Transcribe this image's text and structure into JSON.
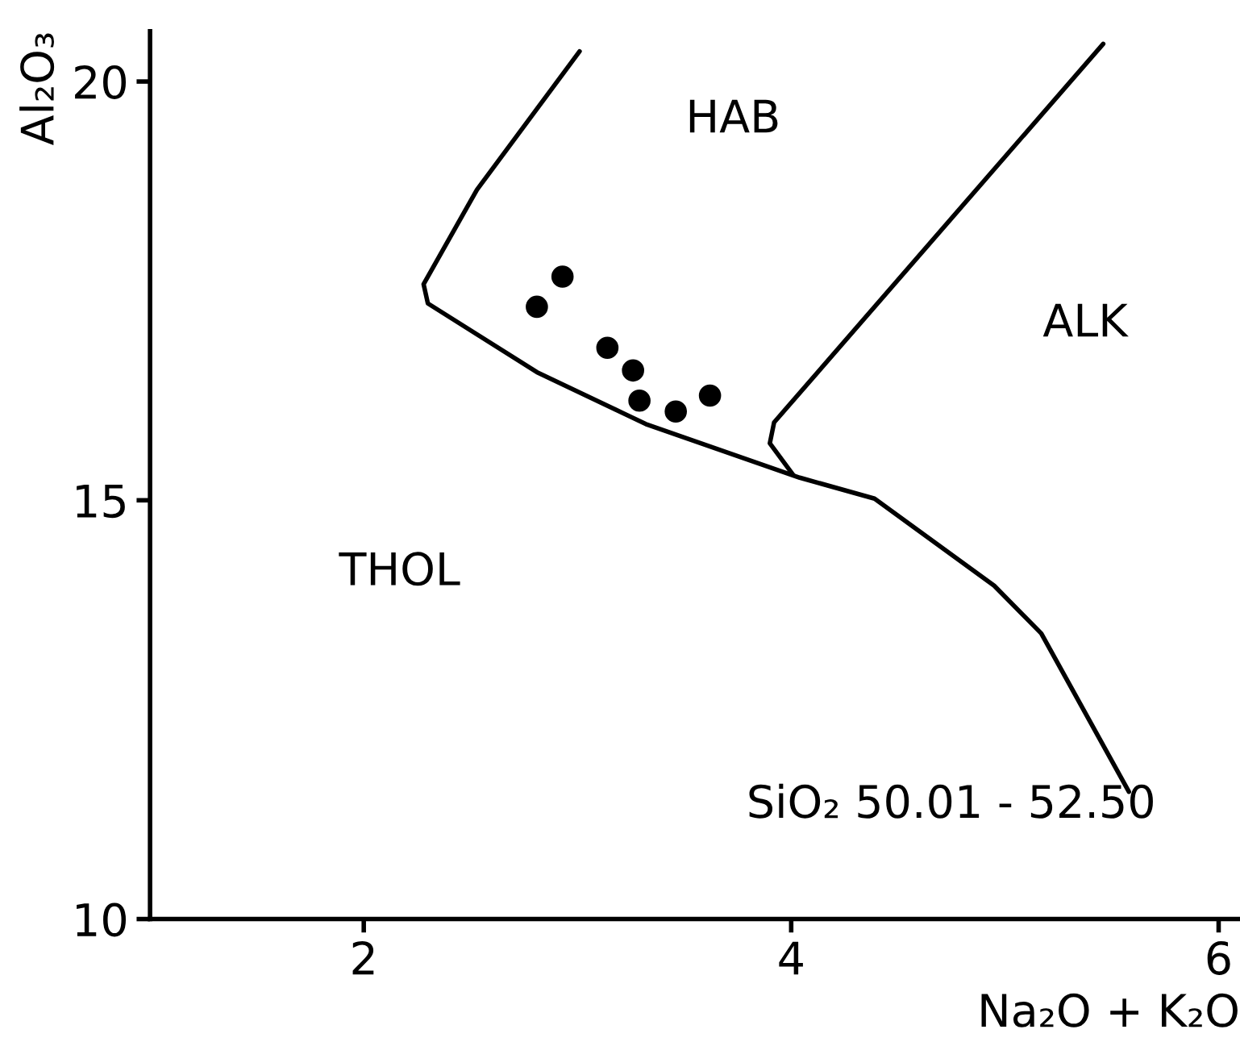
{
  "chart_data": {
    "type": "scatter",
    "xlabel": "Na₂O + K₂O",
    "ylabel": "Al₂O₃",
    "xlim": [
      1,
      6.1
    ],
    "ylim": [
      10,
      20.6
    ],
    "xticks": [
      2,
      4,
      6
    ],
    "yticks": [
      10,
      15,
      20
    ],
    "grid": false,
    "legend": false,
    "marker": "circle",
    "series": [
      {
        "color": "#000000",
        "x": [
          2.93,
          2.81,
          3.14,
          3.26,
          3.29,
          3.46,
          3.62
        ],
        "values": [
          17.67,
          17.31,
          16.82,
          16.55,
          16.19,
          16.06,
          16.25
        ]
      },
      {
        "type": "line",
        "color": "#000000",
        "marker": "none",
        "line_style": "solid",
        "x": [
          3.01,
          2.53,
          2.28,
          2.3,
          2.81,
          3.32,
          4.04,
          4.39,
          4.95,
          5.17,
          5.58
        ],
        "values": [
          20.36,
          18.71,
          17.58,
          17.35,
          16.53,
          15.91,
          15.27,
          15.02,
          13.98,
          13.41,
          11.52
        ]
      },
      {
        "type": "line",
        "color": "#000000",
        "marker": "none",
        "line_style": "solid",
        "x": [
          5.46,
          3.92,
          3.9,
          4.01
        ],
        "values": [
          20.45,
          15.93,
          15.68,
          15.3
        ]
      }
    ],
    "annotations": [
      "HAB",
      "ALK",
      "THOL",
      "SiO₂ 50.01 - 52.50"
    ]
  }
}
